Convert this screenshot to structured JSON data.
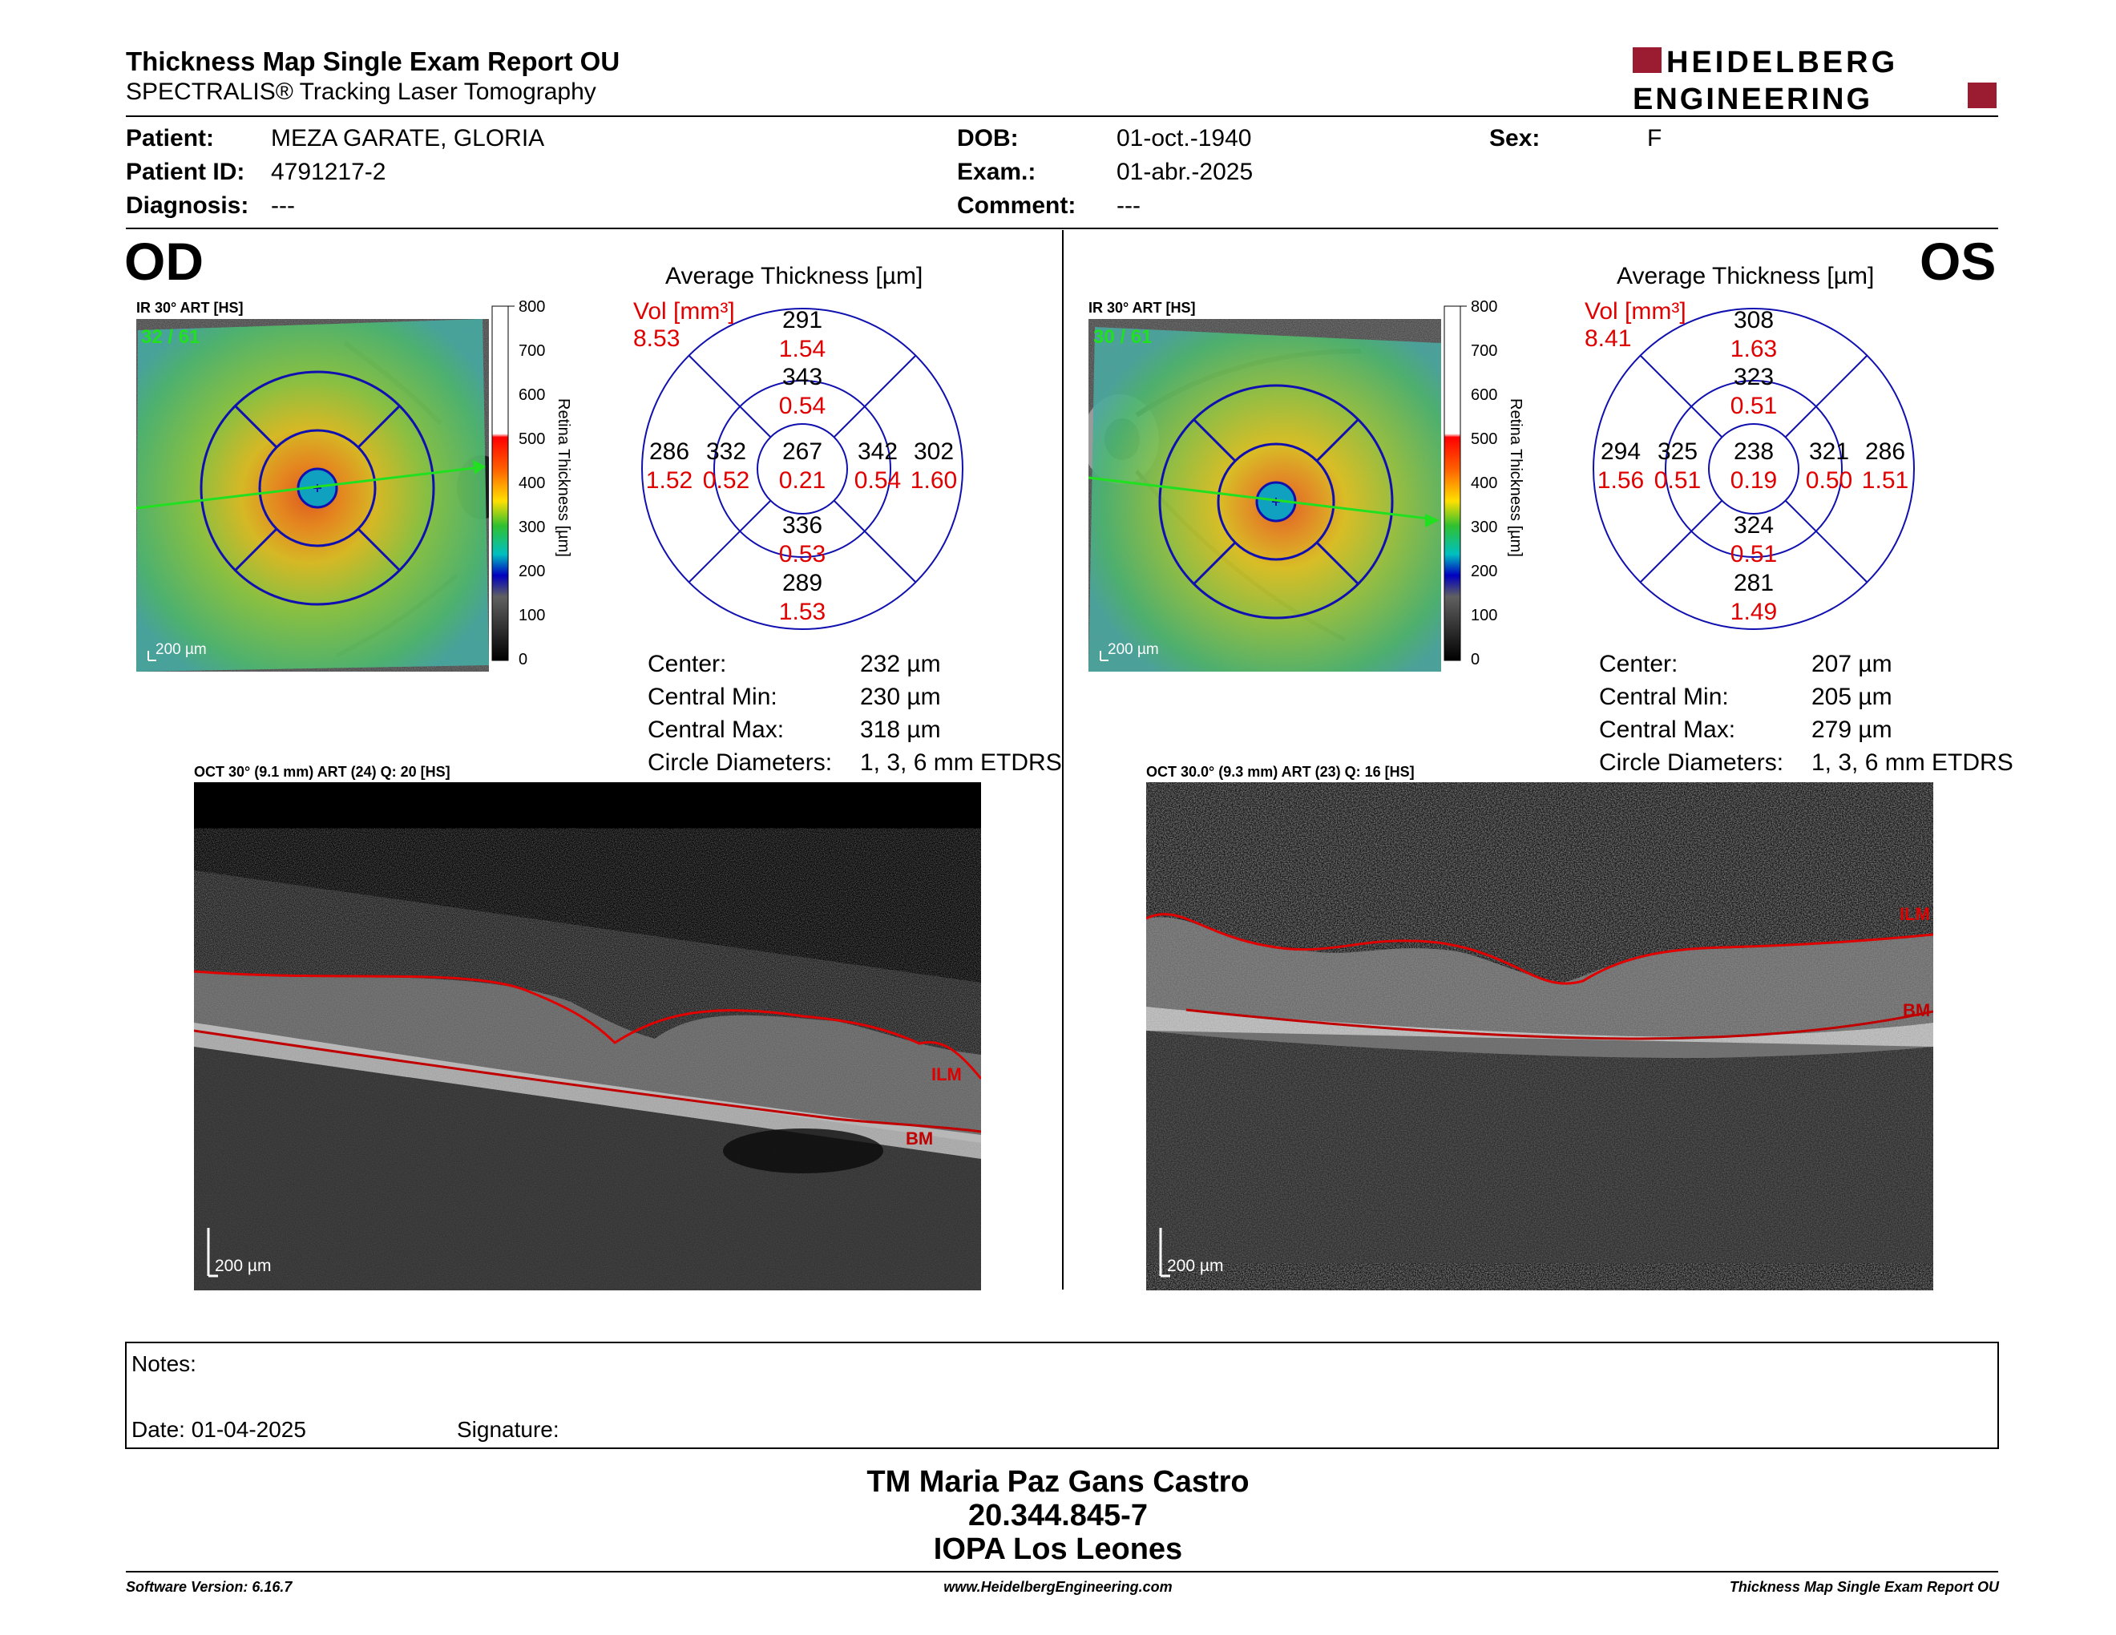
{
  "header": {
    "title": "Thickness Map Single Exam Report OU",
    "subtitle": "SPECTRALIS® Tracking Laser Tomography",
    "logo_line1": "HEIDELBERG",
    "logo_line2": "ENGINEERING",
    "logo_color": "#9b1b30"
  },
  "patient": {
    "patient_label": "Patient:",
    "patient_value": "MEZA GARATE, GLORIA",
    "id_label": "Patient ID:",
    "id_value": "4791217-2",
    "diagnosis_label": "Diagnosis:",
    "diagnosis_value": "---",
    "dob_label": "DOB:",
    "dob_value": "01-oct.-1940",
    "exam_label": "Exam.:",
    "exam_value": "01-abr.-2025",
    "comment_label": "Comment:",
    "comment_value": "---",
    "sex_label": "Sex:",
    "sex_value": "F"
  },
  "od": {
    "eye": "OD",
    "ir_label": "IR 30° ART [HS]",
    "frames": "32 / 61",
    "scale": "200 µm",
    "oct_label": "OCT 30° (9.1 mm) ART (24) Q: 20 [HS]",
    "oct_scale": "200 µm",
    "ilm": "ILM",
    "bm": "BM",
    "avg_title": "Average Thickness [µm]",
    "vol_label": "Vol [mm³]",
    "vol_value": "8.53",
    "grid": {
      "outer_sup": [
        "291",
        "1.54"
      ],
      "inner_sup": [
        "343",
        "0.54"
      ],
      "outer_temp": [
        "286",
        "1.52"
      ],
      "inner_temp": [
        "332",
        "0.52"
      ],
      "center": [
        "267",
        "0.21"
      ],
      "inner_nas": [
        "342",
        "0.54"
      ],
      "outer_nas": [
        "302",
        "1.60"
      ],
      "inner_inf": [
        "336",
        "0.53"
      ],
      "outer_inf": [
        "289",
        "1.53"
      ]
    },
    "stats": {
      "center_label": "Center:",
      "center_value": "232 µm",
      "min_label": "Central Min:",
      "min_value": "230 µm",
      "max_label": "Central Max:",
      "max_value": "318 µm",
      "diam_label": "Circle Diameters:",
      "diam_value": "1, 3, 6 mm ETDRS"
    }
  },
  "os": {
    "eye": "OS",
    "ir_label": "IR 30° ART [HS]",
    "frames": "30 / 61",
    "scale": "200 µm",
    "oct_label": "OCT 30.0° (9.3 mm) ART (23) Q: 16 [HS]",
    "oct_scale": "200 µm",
    "ilm": "ILM",
    "bm": "BM",
    "avg_title": "Average Thickness [µm]",
    "vol_label": "Vol [mm³]",
    "vol_value": "8.41",
    "grid": {
      "outer_sup": [
        "308",
        "1.63"
      ],
      "inner_sup": [
        "323",
        "0.51"
      ],
      "outer_temp": [
        "294",
        "1.56"
      ],
      "inner_temp": [
        "325",
        "0.51"
      ],
      "center": [
        "238",
        "0.19"
      ],
      "inner_nas": [
        "321",
        "0.50"
      ],
      "outer_nas": [
        "286",
        "1.51"
      ],
      "inner_inf": [
        "324",
        "0.51"
      ],
      "outer_inf": [
        "281",
        "1.49"
      ]
    },
    "stats": {
      "center_label": "Center:",
      "center_value": "207 µm",
      "min_label": "Central Min:",
      "min_value": "205 µm",
      "max_label": "Central Max:",
      "max_value": "279 µm",
      "diam_label": "Circle Diameters:",
      "diam_value": "1, 3, 6 mm ETDRS"
    }
  },
  "colorbar": {
    "ticks": [
      "800",
      "700",
      "600",
      "500",
      "400",
      "300",
      "200",
      "100",
      "0"
    ],
    "label": "Retina   Thickness [µm]"
  },
  "notes": {
    "notes_label": "Notes:",
    "date_label": "Date: 01-04-2025",
    "signature_label": "Signature:"
  },
  "signature": {
    "line1": "TM Maria Paz Gans Castro",
    "line2": "20.344.845-7",
    "line3": "IOPA Los Leones"
  },
  "footer": {
    "left": "Software Version: 6.16.7",
    "center": "www.HeidelbergEngineering.com",
    "right": "Thickness Map Single Exam Report OU"
  }
}
